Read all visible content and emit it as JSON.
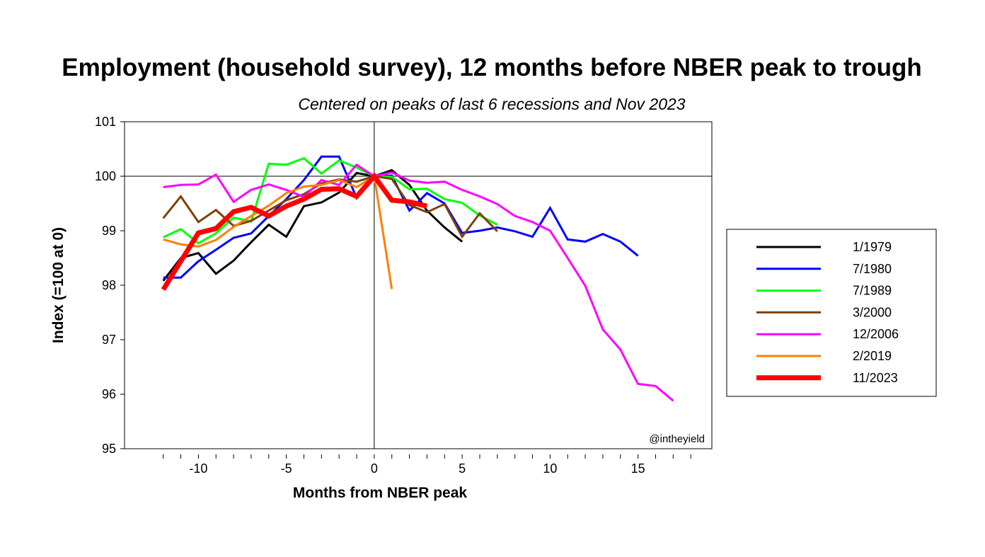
{
  "chart_data": {
    "type": "line",
    "title": "Employment (household survey), 12 months before NBER peak to trough",
    "subtitle": "Centered on peaks of last 6 recessions and Nov 2023",
    "xlabel": "Months from NBER peak",
    "ylabel": "Index (=100 at 0)",
    "xlim": [
      -14.2,
      19.2
    ],
    "ylim": [
      95,
      101
    ],
    "xticks": [
      -10,
      -5,
      0,
      5,
      10,
      15
    ],
    "yticks": [
      95,
      96,
      97,
      98,
      99,
      100,
      101
    ],
    "grid": false,
    "legend_position": "right",
    "watermark": "@intheyield",
    "series": [
      {
        "name": "1/1979",
        "color": "#000000",
        "width": 3,
        "x_start": -12,
        "values": [
          98.08,
          98.5,
          98.59,
          98.21,
          98.45,
          98.79,
          99.11,
          98.89,
          99.45,
          99.52,
          99.7,
          100.06,
          100,
          100.11,
          99.84,
          99.37,
          99.06,
          98.8
        ]
      },
      {
        "name": "7/1980",
        "color": "#0000ff",
        "width": 3,
        "x_start": -12,
        "values": [
          98.14,
          98.14,
          98.44,
          98.65,
          98.87,
          98.95,
          99.27,
          99.58,
          99.93,
          100.36,
          100.36,
          99.6,
          100,
          100.01,
          99.37,
          99.69,
          99.5,
          98.96,
          99.0,
          99.06,
          98.99,
          98.89,
          99.42,
          98.84,
          98.8,
          98.94,
          98.8,
          98.54
        ]
      },
      {
        "name": "7/1989",
        "color": "#00ff00",
        "width": 3,
        "x_start": -12,
        "values": [
          98.88,
          99.03,
          98.77,
          98.95,
          99.24,
          99.17,
          100.23,
          100.21,
          100.33,
          100.05,
          100.29,
          100.16,
          100,
          99.99,
          99.76,
          99.77,
          99.58,
          99.51,
          99.28,
          99.11
        ]
      },
      {
        "name": "3/2000",
        "color": "#7f3f00",
        "width": 3,
        "x_start": -12,
        "values": [
          99.23,
          99.63,
          99.16,
          99.38,
          99.09,
          99.18,
          99.37,
          99.56,
          99.67,
          99.87,
          99.94,
          99.9,
          100,
          99.95,
          99.47,
          99.34,
          99.49,
          98.89,
          99.32,
          98.99
        ]
      },
      {
        "name": "12/2006",
        "color": "#ff00ff",
        "width": 3,
        "x_start": -12,
        "values": [
          99.8,
          99.84,
          99.85,
          100.03,
          99.53,
          99.75,
          99.85,
          99.75,
          99.62,
          99.93,
          99.84,
          100.21,
          100,
          100.07,
          99.92,
          99.88,
          99.9,
          99.75,
          99.63,
          99.49,
          99.27,
          99.16,
          99.0,
          98.5,
          97.99,
          97.19,
          96.82,
          96.19,
          96.15,
          95.88
        ]
      },
      {
        "name": "2/2019",
        "color": "#ff7f00",
        "width": 3,
        "x_start": -12,
        "values": [
          98.84,
          98.75,
          98.71,
          98.83,
          99.07,
          99.27,
          99.46,
          99.69,
          99.81,
          99.84,
          99.93,
          99.8,
          100,
          97.93
        ]
      },
      {
        "name": "11/2023",
        "color": "#ff0000",
        "width": 7,
        "x_start": -12,
        "values": [
          97.92,
          98.44,
          98.96,
          99.04,
          99.35,
          99.43,
          99.27,
          99.45,
          99.58,
          99.76,
          99.77,
          99.63,
          100,
          99.56,
          99.53,
          99.45
        ]
      }
    ]
  }
}
